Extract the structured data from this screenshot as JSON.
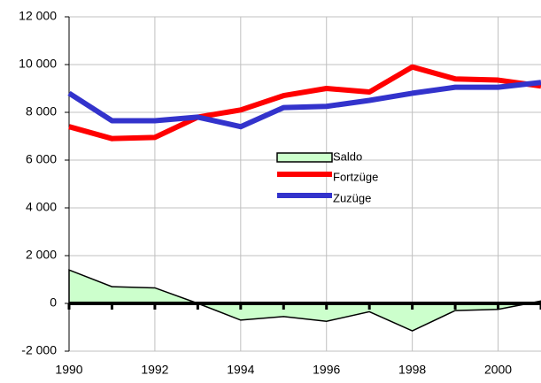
{
  "chart_data": {
    "type": "line",
    "x": [
      1990,
      1991,
      1992,
      1993,
      1994,
      1995,
      1996,
      1997,
      1998,
      1999,
      2000,
      2001
    ],
    "series": [
      {
        "name": "Saldo",
        "color": "#ccffcc",
        "values": [
          1400,
          700,
          650,
          0,
          -700,
          -550,
          -750,
          -350,
          -1150,
          -300,
          -250,
          100
        ]
      },
      {
        "name": "Fortzüge",
        "color": "#ff0000",
        "values": [
          7400,
          6900,
          6950,
          7800,
          8100,
          8700,
          9000,
          8850,
          9900,
          9400,
          9350,
          9100
        ]
      },
      {
        "name": "Zuzüge",
        "color": "#3333cc",
        "values": [
          8800,
          7650,
          7650,
          7800,
          7400,
          8200,
          8250,
          8500,
          8800,
          9050,
          9050,
          9250
        ]
      }
    ],
    "xlim": [
      1990,
      2001
    ],
    "xticks": [
      1990,
      1992,
      1994,
      1996,
      1998,
      2000
    ],
    "ylim": [
      -2000,
      12000
    ],
    "yticks": [
      {
        "value": -2000,
        "label": "-2 000"
      },
      0,
      {
        "value": 2000,
        "label": "2 000"
      },
      {
        "value": 4000,
        "label": "4 000"
      },
      {
        "value": 6000,
        "label": "6 000"
      },
      {
        "value": 8000,
        "label": "8 000"
      },
      {
        "value": 10000,
        "label": "10 000"
      },
      {
        "value": 12000,
        "label": "12 000"
      }
    ],
    "grid": true
  }
}
